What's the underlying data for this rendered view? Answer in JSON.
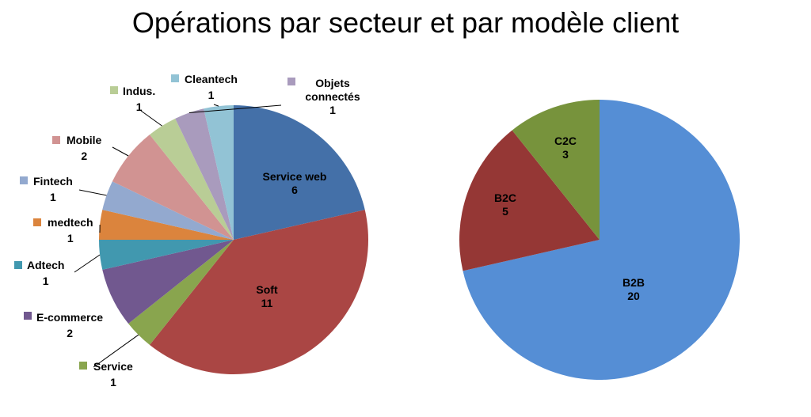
{
  "title": "Opérations par secteur et par modèle client",
  "chart_data": [
    {
      "type": "pie",
      "categories": [
        "Service web",
        "Soft",
        "Service",
        "E-commerce",
        "Adtech",
        "medtech",
        "Fintech",
        "Mobile",
        "Indus.",
        "Objets connectés",
        "Cleantech"
      ],
      "values": [
        6,
        11,
        1,
        2,
        1,
        1,
        1,
        2,
        1,
        1,
        1
      ],
      "colors": [
        "#4470a8",
        "#aa4644",
        "#89a54e",
        "#71588f",
        "#4198af",
        "#db843d",
        "#93a9cf",
        "#d19392",
        "#b9cd96",
        "#a99bbd",
        "#92c3d5"
      ],
      "labels": [
        {
          "name": "Service web",
          "value": "6"
        },
        {
          "name": "Soft",
          "value": "11"
        },
        {
          "name": "Service",
          "value": "1"
        },
        {
          "name": "E-commerce",
          "value": "2"
        },
        {
          "name": "Adtech",
          "value": "1"
        },
        {
          "name": "medtech",
          "value": "1"
        },
        {
          "name": "Fintech",
          "value": "1"
        },
        {
          "name": "Mobile",
          "value": "2"
        },
        {
          "name": "Indus.",
          "value": "1"
        },
        {
          "name": "Objets connectés",
          "value": "1"
        },
        {
          "name": "Cleantech",
          "value": "1"
        }
      ]
    },
    {
      "type": "pie",
      "categories": [
        "B2B",
        "B2C",
        "C2C"
      ],
      "values": [
        20,
        5,
        3
      ],
      "colors": [
        "#558ed5",
        "#953735",
        "#77933c"
      ],
      "labels": [
        {
          "name": "B2B",
          "value": "20"
        },
        {
          "name": "B2C",
          "value": "5"
        },
        {
          "name": "C2C",
          "value": "3"
        }
      ]
    }
  ]
}
